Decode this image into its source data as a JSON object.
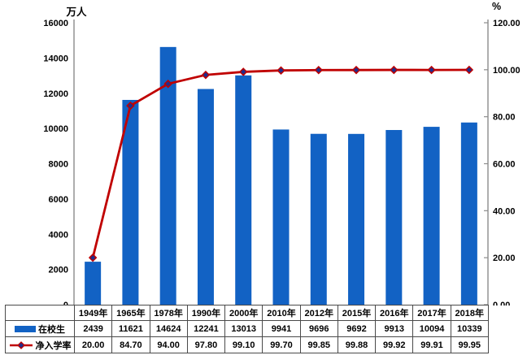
{
  "chart_data": {
    "type": "combo-bar-line",
    "title": "",
    "categories": [
      "1949年",
      "1965年",
      "1978年",
      "1990年",
      "2000年",
      "2010年",
      "2012年",
      "2015年",
      "2016年",
      "2017年",
      "2018年"
    ],
    "series": [
      {
        "name": "在校生",
        "type": "bar",
        "axis": "left",
        "values": [
          2439,
          11621,
          14624,
          12241,
          13013,
          9941,
          9696,
          9692,
          9913,
          10094,
          10339
        ]
      },
      {
        "name": "净入学率",
        "type": "line",
        "axis": "right",
        "marker": "diamond",
        "values": [
          20.0,
          84.7,
          94.0,
          97.8,
          99.1,
          99.7,
          99.85,
          99.88,
          99.92,
          99.91,
          99.95
        ]
      }
    ],
    "left_axis": {
      "label": "万人",
      "min": 0,
      "max": 16000,
      "tick_labels": [
        "0",
        "2000",
        "4000",
        "6000",
        "8000",
        "10000",
        "12000",
        "14000",
        "16000"
      ]
    },
    "right_axis": {
      "label": "%",
      "min": 0,
      "max": 120,
      "tick_labels": [
        "0.00",
        "20.00",
        "40.00",
        "60.00",
        "80.00",
        "100.00",
        "120.00"
      ]
    },
    "grid": false,
    "legend_position": "table-left"
  },
  "colors": {
    "bar": "#1262C4",
    "line": "#C00000",
    "marker_fill": "#1F2D8C",
    "axis": "#8C8C8C",
    "table_border": "#4a4a4a",
    "text": "#000000",
    "background": "#FFFFFF"
  }
}
